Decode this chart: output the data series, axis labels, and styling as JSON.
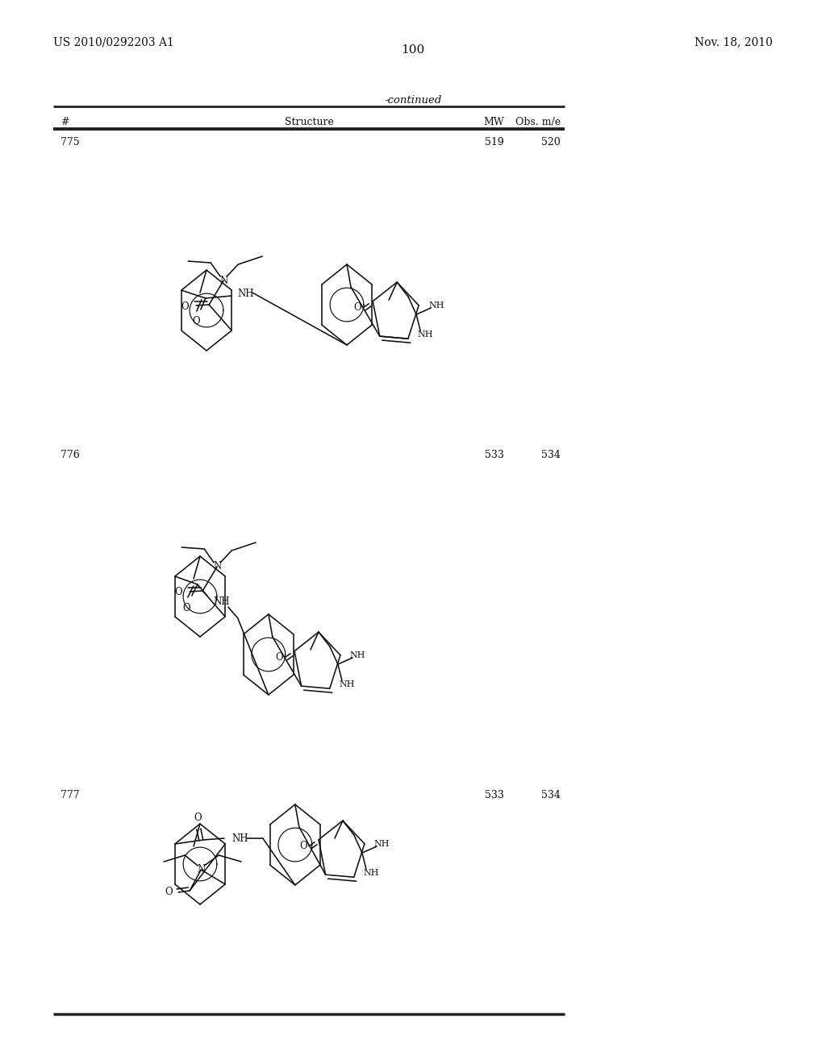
{
  "page_number": "100",
  "patent_number": "US 2010/0292203 A1",
  "patent_date": "Nov. 18, 2010",
  "table_header": "-continued",
  "col_headers": [
    "#",
    "Structure",
    "MW",
    "Obs. m/e"
  ],
  "rows": [
    {
      "num": "775",
      "mw": "519",
      "obs": "520"
    },
    {
      "num": "776",
      "mw": "533",
      "obs": "534"
    },
    {
      "num": "777",
      "mw": "533",
      "obs": "534"
    }
  ],
  "bg_color": "#ffffff",
  "text_color": "#111111",
  "line_color": "#222222"
}
